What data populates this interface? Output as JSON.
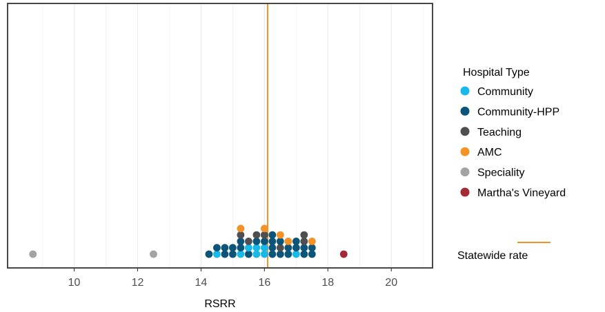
{
  "chart_data": {
    "type": "scatter",
    "subtype": "dot-plot",
    "title": "",
    "xlabel": "RSRR",
    "ylabel": "",
    "xlim": [
      7.9,
      21.3
    ],
    "x_ticks": [
      10,
      12,
      14,
      16,
      18,
      20
    ],
    "grid": "vertical-only",
    "legend_title": "Hospital Type",
    "legend_position": "right",
    "categories": [
      "Community",
      "Community-HPP",
      "Teaching",
      "AMC",
      "Speciality",
      "Martha's Vineyard"
    ],
    "colors": {
      "Community": "#18b8e8",
      "Community-HPP": "#0c5578",
      "Teaching": "#4f4f4f",
      "AMC": "#f29227",
      "Speciality": "#a3a3a3",
      "Martha's Vineyard": "#a52a38"
    },
    "reference_line": {
      "label": "Statewide rate",
      "x": 16.1,
      "color": "#f29227"
    },
    "stacks": [
      {
        "x": 8.7,
        "dots": [
          "Speciality"
        ]
      },
      {
        "x": 12.5,
        "dots": [
          "Speciality"
        ]
      },
      {
        "x": 14.25,
        "dots": [
          "Community-HPP"
        ]
      },
      {
        "x": 14.5,
        "dots": [
          "Community",
          "Community-HPP"
        ]
      },
      {
        "x": 14.75,
        "dots": [
          "Community-HPP",
          "Community-HPP"
        ]
      },
      {
        "x": 15.0,
        "dots": [
          "Community-HPP",
          "Community-HPP"
        ]
      },
      {
        "x": 15.25,
        "dots": [
          "Community",
          "Community-HPP",
          "Community-HPP",
          "Teaching",
          "AMC"
        ]
      },
      {
        "x": 15.5,
        "dots": [
          "Community-HPP",
          "Community",
          "Teaching"
        ]
      },
      {
        "x": 15.75,
        "dots": [
          "Community",
          "Community",
          "Community-HPP",
          "Teaching"
        ]
      },
      {
        "x": 16.0,
        "dots": [
          "Community",
          "Community",
          "Community-HPP",
          "Teaching",
          "AMC"
        ]
      },
      {
        "x": 16.25,
        "dots": [
          "Community-HPP",
          "Community-HPP",
          "Community-HPP",
          "Community-HPP"
        ]
      },
      {
        "x": 16.5,
        "dots": [
          "Community-HPP",
          "Teaching",
          "Community-HPP",
          "AMC"
        ]
      },
      {
        "x": 16.75,
        "dots": [
          "Community-HPP",
          "Community-HPP",
          "AMC"
        ]
      },
      {
        "x": 17.0,
        "dots": [
          "Community",
          "Community-HPP",
          "Community-HPP"
        ]
      },
      {
        "x": 17.25,
        "dots": [
          "Community-HPP",
          "Community-HPP",
          "Teaching",
          "Teaching"
        ]
      },
      {
        "x": 17.5,
        "dots": [
          "Community-HPP",
          "Community-HPP",
          "AMC"
        ]
      },
      {
        "x": 18.5,
        "dots": [
          "Martha's Vineyard"
        ]
      }
    ]
  }
}
